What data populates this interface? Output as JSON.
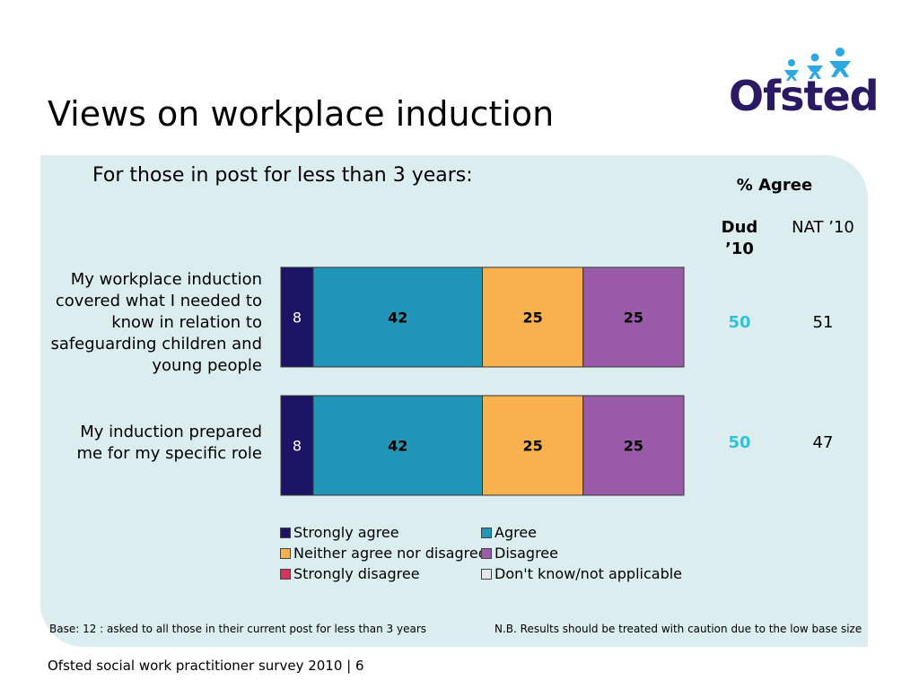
{
  "page": {
    "title": "Views on workplace induction",
    "logo": {
      "text": "Ofsted",
      "accent_color": "#2ea8e0",
      "text_color": "#2a1a63"
    },
    "subtitle": "For those in post for less than 3 years:",
    "agree_heading": "% Agree",
    "col_dud": "Dud ’10",
    "col_nat": "NAT ’10",
    "rows": [
      {
        "label": "My workplace induction covered what I needed to know in relation to safeguarding children and young people",
        "dud": "50",
        "nat": "51"
      },
      {
        "label": "My induction prepared me for my specific role",
        "dud": "50",
        "nat": "47"
      }
    ],
    "footnote_left": "Base: 12 : asked to all those in their current post for less than 3 years",
    "footnote_right": "N.B. Results should be treated with caution due to the low base size",
    "footer": "Ofsted social work practitioner survey 2010  |  6"
  },
  "chart_data": {
    "type": "bar",
    "stacked": true,
    "orientation": "horizontal",
    "categories": [
      "My workplace induction covered what I needed to know in relation to safeguarding children and young people",
      "My induction prepared me for my specific role"
    ],
    "series": [
      {
        "name": "Strongly agree",
        "color": "#1b1464",
        "values": [
          8,
          8
        ]
      },
      {
        "name": "Agree",
        "color": "#2196b8",
        "values": [
          42,
          42
        ]
      },
      {
        "name": "Neither agree nor disagree",
        "color": "#f7b24f",
        "values": [
          25,
          25
        ]
      },
      {
        "name": "Disagree",
        "color": "#9a5ca8",
        "values": [
          25,
          25
        ]
      },
      {
        "name": "Strongly disagree",
        "color": "#d6335e",
        "values": [
          0,
          0
        ]
      },
      {
        "name": "Don't know/not applicable",
        "color": "#e6e6e6",
        "values": [
          0,
          0
        ]
      }
    ],
    "xlim": [
      0,
      100
    ],
    "grid": false,
    "legend_position": "bottom"
  }
}
